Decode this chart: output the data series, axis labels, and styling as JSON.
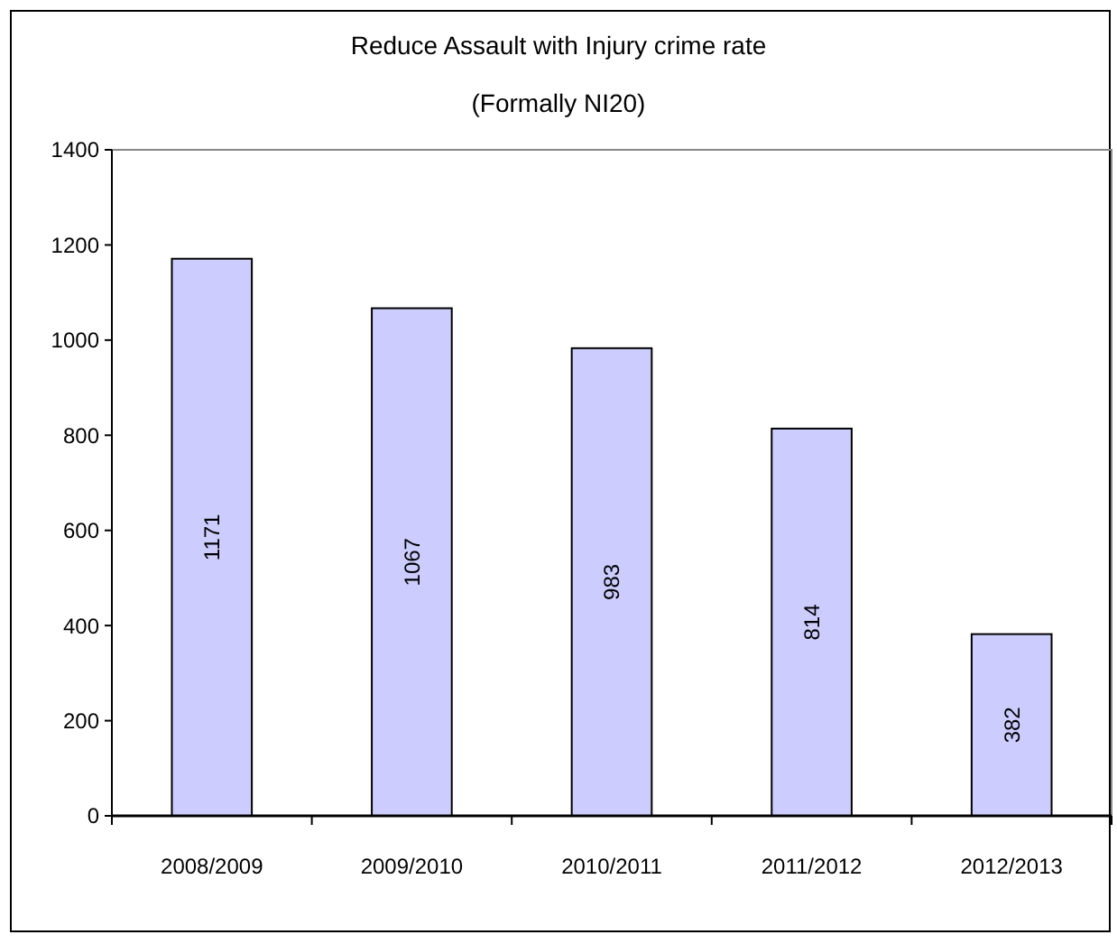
{
  "chart_data": {
    "type": "bar",
    "title": "Reduce Assault with Injury crime rate",
    "subtitle": "(Formally NI20)",
    "categories": [
      "2008/2009",
      "2009/2010",
      "2010/2011",
      "2011/2012",
      "2012/2013"
    ],
    "values": [
      1171,
      1067,
      983,
      814,
      382
    ],
    "color": "#ccccff",
    "ylim": [
      0,
      1400
    ],
    "yticks": [
      0,
      200,
      400,
      600,
      800,
      1000,
      1200,
      1400
    ],
    "grid": false,
    "data_labels": true
  }
}
